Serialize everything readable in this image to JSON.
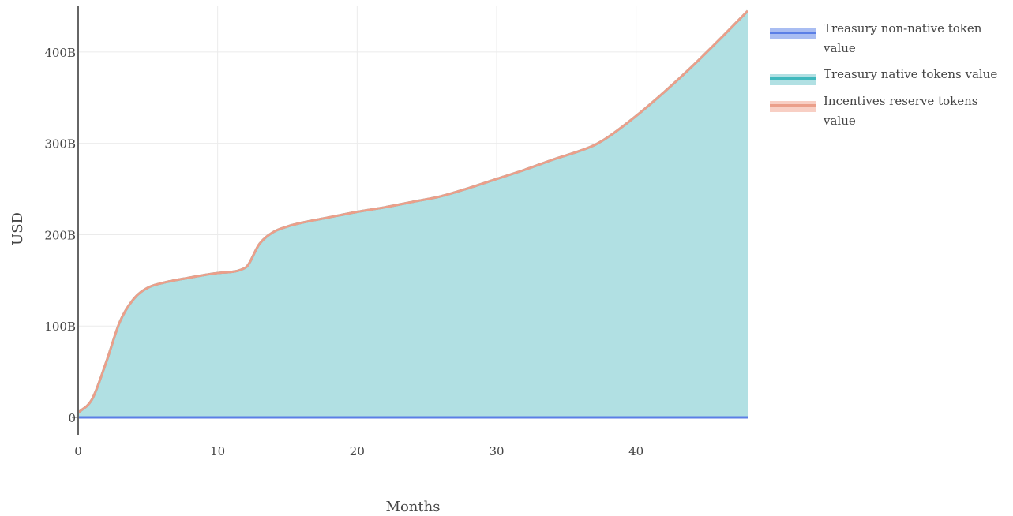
{
  "chart_data": {
    "type": "area",
    "xlabel": "Months",
    "ylabel": "USD",
    "xlim": [
      0,
      48
    ],
    "ylim": [
      0,
      450000000000
    ],
    "x_ticks": [
      0,
      10,
      20,
      30,
      40
    ],
    "y_ticks": [
      0,
      100000000000,
      200000000000,
      300000000000,
      400000000000
    ],
    "x_tick_labels": [
      "0",
      "10",
      "20",
      "30",
      "40"
    ],
    "y_tick_labels": [
      "0",
      "100B",
      "200B",
      "300B",
      "400B"
    ],
    "grid": true,
    "stacked": true,
    "legend_position": "right",
    "x": [
      0,
      1,
      2,
      3,
      4,
      5,
      6,
      8,
      10,
      12,
      13,
      14,
      15,
      16,
      18,
      20,
      22,
      24,
      26,
      28,
      30,
      32,
      34,
      37,
      38,
      40,
      42,
      44,
      46,
      48
    ],
    "series": [
      {
        "name": "Treasury non-native token value",
        "color": "#5b7fe6",
        "fill": "#a9bdf2",
        "values": [
          0,
          0,
          0,
          0,
          0,
          0,
          0,
          0,
          0,
          0,
          0,
          0,
          0,
          0,
          0,
          0,
          0,
          0,
          0,
          0,
          0,
          0,
          0,
          0,
          0,
          0,
          0,
          0,
          0,
          0
        ]
      },
      {
        "name": "Treasury native tokens value",
        "color": "#3fb8bd",
        "fill": "#b1e0e3",
        "values": [
          5000000000,
          20000000000,
          60000000000,
          105000000000,
          130000000000,
          142000000000,
          147000000000,
          153000000000,
          158000000000,
          164000000000,
          190000000000,
          203000000000,
          209000000000,
          213000000000,
          219000000000,
          225000000000,
          230000000000,
          236000000000,
          242000000000,
          251000000000,
          261000000000,
          271000000000,
          282000000000,
          298000000000,
          307000000000,
          330000000000,
          356000000000,
          384000000000,
          414000000000,
          445000000000
        ]
      },
      {
        "name": "Incentives reserve tokens value",
        "color": "#eb9f8a",
        "fill": "#f8cfc4",
        "values": [
          0,
          0,
          0,
          0,
          0,
          0,
          0,
          0,
          0,
          0,
          0,
          0,
          0,
          0,
          0,
          0,
          0,
          0,
          0,
          0,
          0,
          0,
          0,
          0,
          0,
          0,
          0,
          0,
          0,
          0
        ]
      }
    ]
  }
}
